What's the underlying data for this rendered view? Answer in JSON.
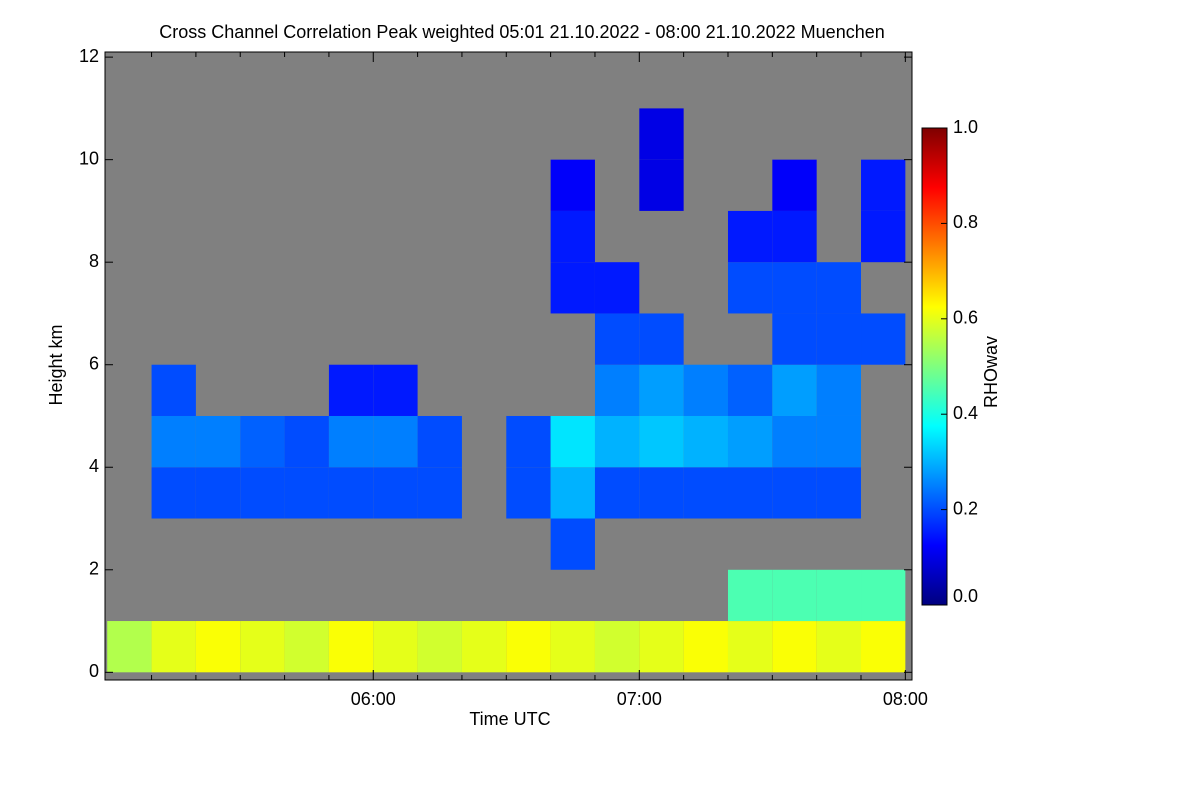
{
  "chart_data": {
    "type": "heatmap",
    "title": "Cross Channel Correlation Peak weighted   05:01 21.10.2022 - 08:00 21.10.2022 Muenchen",
    "xlabel": "Time UTC",
    "ylabel": "Height km",
    "colorbar_label": "RHOwav",
    "xlim": [
      299.5,
      481.5
    ],
    "ylim": [
      -0.15,
      12.1
    ],
    "xticks": [
      {
        "value": 360,
        "label": "06:00"
      },
      {
        "value": 420,
        "label": "07:00"
      },
      {
        "value": 480,
        "label": "08:00"
      }
    ],
    "xminorticks": [
      310,
      320,
      330,
      340,
      350,
      370,
      380,
      390,
      400,
      410,
      430,
      440,
      450,
      460,
      470
    ],
    "yticks": [
      0,
      2,
      4,
      6,
      8,
      10,
      12
    ],
    "xbins": [
      300,
      310,
      320,
      330,
      340,
      350,
      360,
      370,
      380,
      390,
      400,
      410,
      420,
      430,
      440,
      450,
      460,
      470,
      480
    ],
    "ybins": [
      0,
      1,
      2,
      3,
      4,
      5,
      6,
      7,
      8,
      9,
      10,
      11,
      12
    ],
    "z": [
      [
        0.55,
        0.6,
        0.62,
        0.6,
        0.58,
        0.62,
        0.6,
        0.58,
        0.6,
        0.62,
        0.6,
        0.58,
        0.6,
        0.62,
        0.6,
        0.62,
        0.6,
        0.62
      ],
      [
        null,
        null,
        null,
        null,
        null,
        null,
        null,
        null,
        null,
        null,
        null,
        null,
        null,
        null,
        0.45,
        0.45,
        0.45,
        0.45
      ],
      [
        null,
        null,
        null,
        null,
        null,
        null,
        null,
        null,
        null,
        null,
        0.2,
        null,
        null,
        null,
        null,
        null,
        null,
        null
      ],
      [
        null,
        0.2,
        0.2,
        0.2,
        0.2,
        0.2,
        0.2,
        0.2,
        null,
        0.2,
        0.3,
        0.2,
        0.2,
        0.2,
        0.2,
        0.2,
        0.2,
        null
      ],
      [
        null,
        0.25,
        0.25,
        0.22,
        0.2,
        0.25,
        0.25,
        0.2,
        null,
        0.2,
        0.35,
        0.3,
        0.32,
        0.3,
        0.28,
        0.25,
        0.25,
        null
      ],
      [
        null,
        0.2,
        null,
        null,
        null,
        0.15,
        0.15,
        null,
        null,
        null,
        null,
        0.25,
        0.28,
        0.25,
        0.22,
        0.28,
        0.25,
        null
      ],
      [
        null,
        null,
        null,
        null,
        null,
        null,
        null,
        null,
        null,
        null,
        null,
        0.2,
        0.2,
        null,
        null,
        0.2,
        0.2,
        0.2
      ],
      [
        null,
        null,
        null,
        null,
        null,
        null,
        null,
        null,
        null,
        null,
        0.15,
        0.15,
        null,
        null,
        0.2,
        0.2,
        0.2,
        null
      ],
      [
        null,
        null,
        null,
        null,
        null,
        null,
        null,
        null,
        null,
        null,
        0.15,
        null,
        null,
        null,
        0.15,
        0.15,
        null,
        0.15
      ],
      [
        null,
        null,
        null,
        null,
        null,
        null,
        null,
        null,
        null,
        null,
        0.12,
        null,
        0.1,
        null,
        null,
        0.12,
        null,
        0.15
      ],
      [
        null,
        null,
        null,
        null,
        null,
        null,
        null,
        null,
        null,
        null,
        null,
        null,
        0.1,
        null,
        null,
        null,
        null,
        null
      ],
      [
        null,
        null,
        null,
        null,
        null,
        null,
        null,
        null,
        null,
        null,
        null,
        null,
        null,
        null,
        null,
        null,
        null,
        null
      ]
    ],
    "missing_color": "#808080",
    "colormap": [
      "#00007f",
      "#0000ff",
      "#007fff",
      "#00ffff",
      "#7fff7f",
      "#ffff00",
      "#ff7f00",
      "#ff0000",
      "#7f0000"
    ],
    "clim": [
      0,
      1
    ],
    "cticks": [
      {
        "value": 0,
        "label": "0.0"
      },
      {
        "value": 0.2,
        "label": "0.2"
      },
      {
        "value": 0.4,
        "label": "0.4"
      },
      {
        "value": 0.6,
        "label": "0.6"
      },
      {
        "value": 0.8,
        "label": "0.8"
      },
      {
        "value": 1,
        "label": "1.0"
      }
    ]
  }
}
